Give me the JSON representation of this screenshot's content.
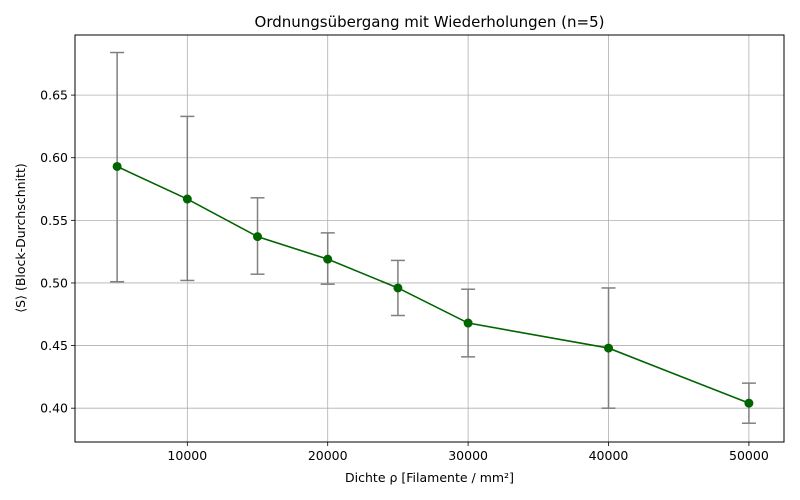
{
  "chart_data": {
    "type": "line",
    "title": "Ordnungsübergang mit Wiederholungen (n=5)",
    "xlabel": "Dichte ρ [Filamente / mm²]",
    "ylabel": "⟨S⟩ (Block-Durchschnitt)",
    "xlim": [
      2000,
      52500
    ],
    "ylim": [
      0.373,
      0.698
    ],
    "x_ticks": [
      10000,
      20000,
      30000,
      40000,
      50000
    ],
    "y_ticks": [
      0.4,
      0.45,
      0.5,
      0.55,
      0.6,
      0.65
    ],
    "grid": true,
    "series": [
      {
        "x": [
          5000,
          10000,
          15000,
          20000,
          25000,
          30000,
          40000,
          50000
        ],
        "values": [
          0.593,
          0.567,
          0.537,
          0.519,
          0.496,
          0.468,
          0.448,
          0.404
        ],
        "err_low": [
          0.501,
          0.502,
          0.507,
          0.499,
          0.474,
          0.441,
          0.4,
          0.388
        ],
        "err_high": [
          0.684,
          0.633,
          0.568,
          0.54,
          0.518,
          0.495,
          0.496,
          0.42
        ]
      }
    ],
    "colors": {
      "line": "#006400",
      "marker": "#006400",
      "errorbar": "#808080",
      "grid": "#b0b0b0"
    }
  }
}
